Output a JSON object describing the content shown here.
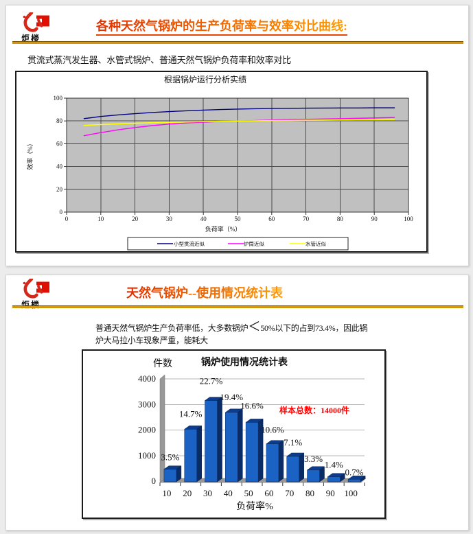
{
  "page": {
    "bg": "#ececec"
  },
  "brand": {
    "logo_text": "炬楼",
    "logo_color": "#d6281a",
    "rule_color": "#d4950e"
  },
  "slide1": {
    "title": "各种天然气锅炉的生产负荷率与效率对比曲线:",
    "subtitle": "贯流式蒸汽发生器、水管式锅炉、普通天然气锅炉负荷率和效率对比"
  },
  "slide2": {
    "title": "天然气锅炉--使用情况统计表",
    "body_pre": "普通天然气锅炉生产负荷率低，大多数锅炉",
    "body_lt": "＜",
    "body_post": "50%以下的占到73.4%，因此锅",
    "body_line2": "炉大马拉小车现象严重，能耗大"
  },
  "chart_data": [
    {
      "type": "line",
      "title": "根据锅炉运行分析实绩",
      "xlabel": "负荷率（%）",
      "ylabel": "效率（%）",
      "xlim": [
        0,
        100
      ],
      "ylim": [
        0,
        100
      ],
      "xticks": [
        0,
        10,
        20,
        30,
        40,
        50,
        60,
        70,
        80,
        90,
        100
      ],
      "yticks": [
        0,
        20,
        40,
        60,
        80,
        100
      ],
      "plot_bg": "#c0c0c0",
      "grid": true,
      "legend_position": "bottom",
      "x": [
        5,
        10,
        15,
        20,
        25,
        30,
        35,
        40,
        45,
        50,
        55,
        60,
        65,
        70,
        75,
        80,
        85,
        90,
        96
      ],
      "series": [
        {
          "name": "小型贯流近似",
          "color": "#000080",
          "values": [
            82,
            83.9,
            85.3,
            86.4,
            87.4,
            88.2,
            88.9,
            89.5,
            90,
            90.4,
            90.7,
            90.9,
            91.1,
            91.2,
            91.3,
            91.4,
            91.4,
            91.5,
            91.5
          ]
        },
        {
          "name": "炉筒近似",
          "color": "#ff00ff",
          "values": [
            67,
            69.8,
            72.2,
            74.2,
            75.9,
            77.2,
            78.2,
            78.9,
            79.5,
            80,
            80.4,
            80.8,
            81.1,
            81.4,
            81.7,
            82,
            82.3,
            82.6,
            83
          ]
        },
        {
          "name": "水管近似",
          "color": "#ffff00",
          "values": [
            76,
            76.8,
            77.4,
            78,
            78.4,
            78.8,
            79.1,
            79.4,
            79.7,
            79.9,
            80.1,
            80.3,
            80.4,
            80.6,
            80.7,
            80.8,
            80.9,
            81,
            81.1
          ]
        }
      ]
    },
    {
      "type": "bar",
      "title": "锅炉使用情况统计表",
      "xlabel": "负荷率%",
      "ylabel": "件数",
      "categories": [
        "10",
        "20",
        "30",
        "40",
        "50",
        "60",
        "70",
        "80",
        "90",
        "100"
      ],
      "values": [
        490,
        2058,
        3178,
        2716,
        2324,
        1484,
        994,
        462,
        196,
        98
      ],
      "percent_labels": [
        "3.5%",
        "14.7%",
        "22.7%",
        "19.4%",
        "16.6%",
        "10.6%",
        "7.1%",
        "3.3%",
        "1.4%",
        "0.7%"
      ],
      "annotation": "样本总数：14000件",
      "annotation_color": "#ff0000",
      "yticks": [
        0,
        1000,
        2000,
        3000,
        4000
      ],
      "ylim": [
        0,
        4000
      ],
      "bar_color_front": "#1a63c4",
      "bar_color_top": "#0d3c8c",
      "bar_color_side": "#0a2c66"
    }
  ]
}
